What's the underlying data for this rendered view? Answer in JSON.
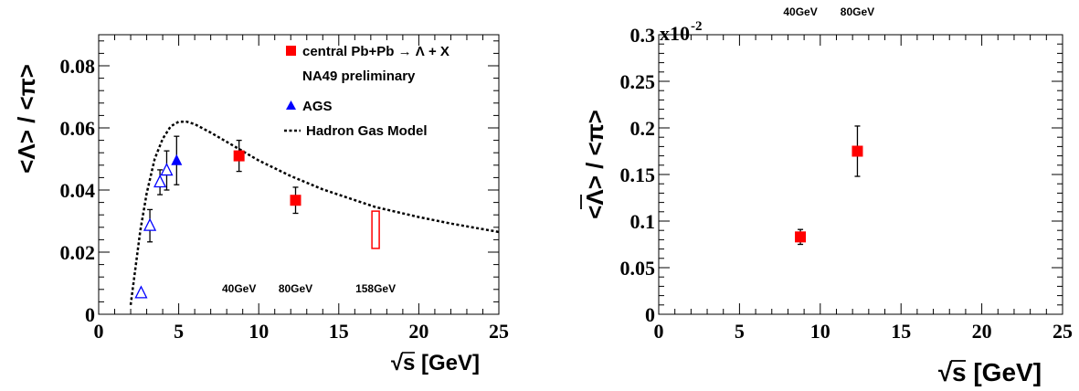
{
  "chart_data": [
    {
      "type": "scatter",
      "xlabel_sqrt": "√",
      "xlabel_rest": "s [GeV]",
      "ylabel": "<Λ> / <π>",
      "xlim": [
        0,
        25
      ],
      "ylim": [
        0,
        0.09
      ],
      "xticks": [
        "0",
        "5",
        "10",
        "15",
        "20",
        "25"
      ],
      "yticks": [
        "0",
        "0.02",
        "0.04",
        "0.06",
        "0.08"
      ],
      "ytick_values": [
        0,
        0.02,
        0.04,
        0.06,
        0.08
      ],
      "energy_labels": [
        {
          "text": "40GeV",
          "x": 8.77
        },
        {
          "text": "80GeV",
          "x": 12.3
        },
        {
          "text": "158GeV",
          "x": 17.3
        }
      ],
      "legend": {
        "placement": "top-right",
        "na49_line1": "central Pb+Pb → Λ + X",
        "na49_line2": "NA49 preliminary",
        "ags": "AGS",
        "hgm": "Hadron Gas Model"
      },
      "series": [
        {
          "name": "central Pb+Pb → Λ + X NA49 preliminary",
          "marker": "filled-square",
          "color": "#ff0000",
          "points": [
            {
              "x": 8.77,
              "y": 0.051,
              "yerr": 0.005
            },
            {
              "x": 12.3,
              "y": 0.0367,
              "yerr": 0.0042
            }
          ]
        },
        {
          "name": "NA49 158GeV",
          "marker": "open-box",
          "color": "#ff0000",
          "points": [
            {
              "x": 17.3,
              "ylow": 0.0212,
              "yhigh": 0.0332
            }
          ]
        },
        {
          "name": "AGS",
          "marker": "filled-triangle",
          "color": "#0000ff",
          "points": [
            {
              "x": 4.87,
              "y": 0.0495,
              "yerr": 0.0078
            }
          ]
        },
        {
          "name": "AGS open",
          "marker": "open-triangle",
          "color": "#0000ff",
          "points": [
            {
              "x": 2.65,
              "y": 0.0068,
              "yerr": 0
            },
            {
              "x": 3.2,
              "y": 0.0285,
              "yerr": 0.0052
            },
            {
              "x": 3.83,
              "y": 0.0425,
              "yerr": 0.004
            },
            {
              "x": 4.25,
              "y": 0.0463,
              "yerr": 0.0063
            }
          ]
        },
        {
          "name": "Hadron Gas Model",
          "line": "dotted",
          "color": "#000000",
          "points": [
            [
              2.0,
              0.003
            ],
            [
              2.3,
              0.015
            ],
            [
              2.6,
              0.027
            ],
            [
              3.0,
              0.039
            ],
            [
              3.5,
              0.05
            ],
            [
              4.0,
              0.0565
            ],
            [
              4.5,
              0.0605
            ],
            [
              5.0,
              0.062
            ],
            [
              5.5,
              0.062
            ],
            [
              6.0,
              0.0612
            ],
            [
              7.0,
              0.0585
            ],
            [
              8.0,
              0.0555
            ],
            [
              10.0,
              0.0495
            ],
            [
              12.0,
              0.0445
            ],
            [
              14.0,
              0.0402
            ],
            [
              17.3,
              0.0345
            ],
            [
              20.0,
              0.0313
            ],
            [
              22.0,
              0.0292
            ],
            [
              25.0,
              0.0265
            ]
          ]
        }
      ]
    },
    {
      "type": "scatter",
      "xlabel_sqrt": "√",
      "xlabel_rest": "s [GeV]",
      "ylabel_prefix": "<",
      "ylabel_lambda": "Λ",
      "ylabel_suffix": "> / <π>",
      "xlim": [
        0,
        25
      ],
      "ylim": [
        0,
        0.003
      ],
      "xticks": [
        "0",
        "5",
        "10",
        "15",
        "20",
        "25"
      ],
      "yticks": [
        "0",
        "0.05",
        "0.1",
        "0.15",
        "0.2",
        "0.25",
        "0.3"
      ],
      "ytick_values": [
        0,
        0.05,
        0.1,
        0.15,
        0.2,
        0.25,
        0.3
      ],
      "yscale_mantissa": "x10",
      "yscale_exponent": "-2",
      "energy_labels": [
        {
          "text": "40GeV",
          "x": 8.77
        },
        {
          "text": "80GeV",
          "x": 12.3
        }
      ],
      "series": [
        {
          "name": "anti-Lambda",
          "marker": "filled-square",
          "color": "#ff0000",
          "points": [
            {
              "x": 8.77,
              "y": 0.00083,
              "yerr": 8e-05
            },
            {
              "x": 12.3,
              "y": 0.00175,
              "yerr": 0.00027
            }
          ]
        }
      ]
    }
  ]
}
